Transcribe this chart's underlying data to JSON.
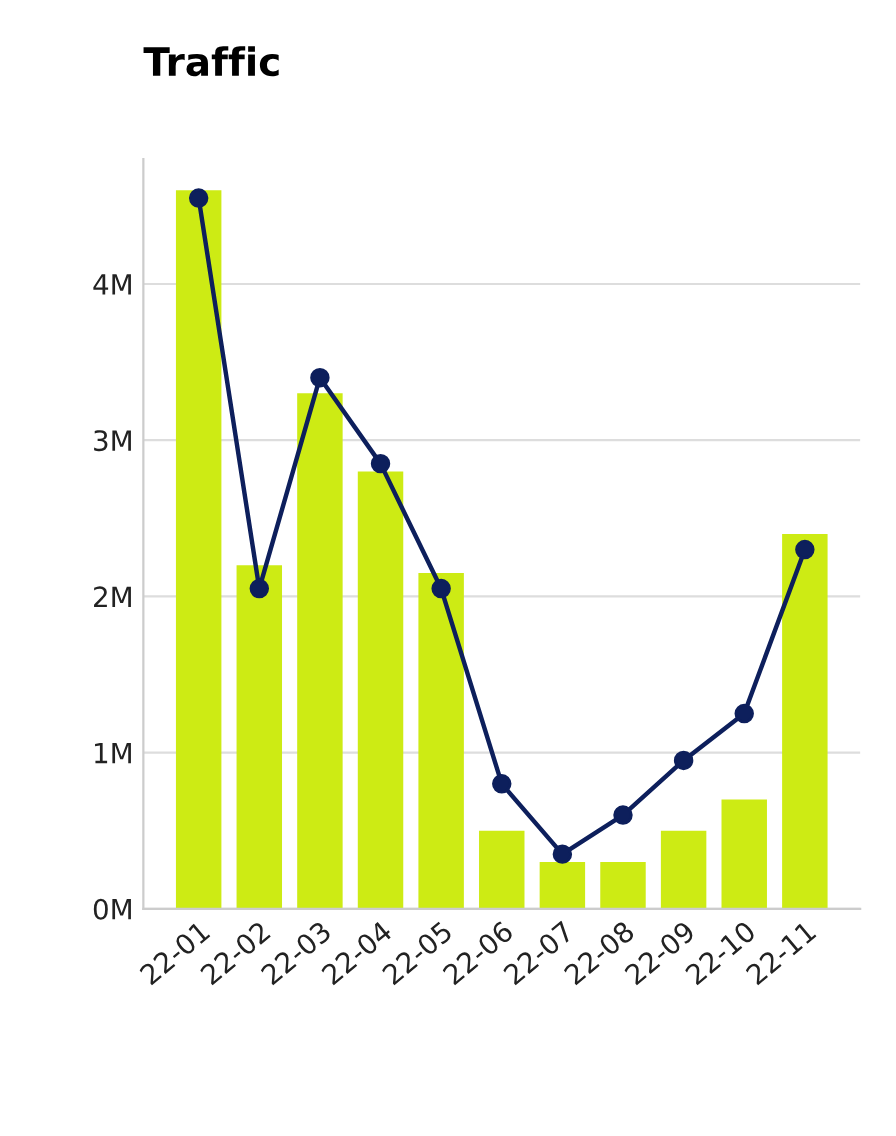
{
  "chart_data": {
    "type": "bar",
    "title": "Traffic",
    "categories": [
      "22-01",
      "22-02",
      "22-03",
      "22-04",
      "22-05",
      "22-06",
      "22-07",
      "22-08",
      "22-09",
      "22-10",
      "22-11"
    ],
    "series": [
      {
        "color": "#cdeb14",
        "values": [
          4.6,
          2.2,
          3.3,
          2.8,
          2.15,
          0.5,
          0.3,
          0.3,
          0.5,
          0.7,
          2.4
        ]
      },
      {
        "type": "line",
        "color": "#0d1f5c",
        "values": [
          4.55,
          2.05,
          3.4,
          2.85,
          2.05,
          0.8,
          0.35,
          0.6,
          0.95,
          1.25,
          2.3
        ]
      }
    ],
    "ylim": [
      0,
      4.8
    ],
    "yticks": [
      {
        "value": 0,
        "label": "0M"
      },
      {
        "value": 1,
        "label": "1M"
      },
      {
        "value": 2,
        "label": "2M"
      },
      {
        "value": 3,
        "label": "3M"
      },
      {
        "value": 4,
        "label": "4M"
      }
    ],
    "grid": "y",
    "marker": "circle",
    "line_style": "solid",
    "legend": false
  }
}
